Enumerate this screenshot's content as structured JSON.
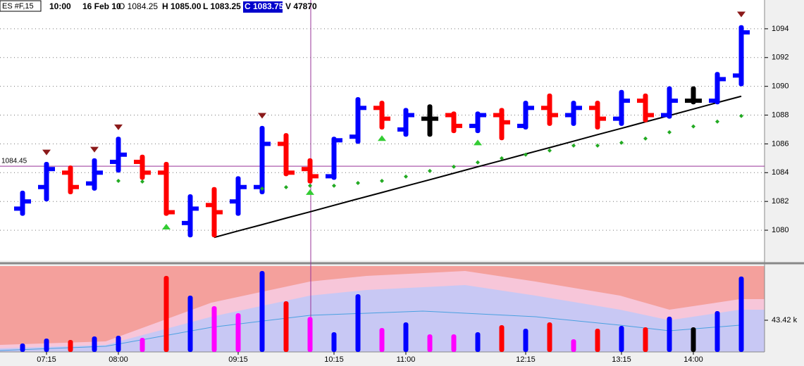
{
  "header": {
    "symbol": "ES #F,15",
    "time": "10:00",
    "date": "16 Feb 10",
    "open": "O 1084.25",
    "high": "H 1085.00",
    "low": "L 1083.25",
    "close": "C 1083.75",
    "volume": "V 47870"
  },
  "chart_data": [
    {
      "type": "ohlc",
      "open": [
        1081.5,
        1083.0,
        1084.0,
        1083.25,
        1084.75,
        1084.75,
        1084.0,
        1080.5,
        1081.75,
        1082.0,
        1083.0,
        1086.0,
        1084.25,
        1083.75,
        1086.5,
        1088.5,
        1087.0,
        1087.75,
        1088.0,
        1087.25,
        1088.0,
        1087.25,
        1088.5,
        1088.0,
        1088.5,
        1087.75,
        1089.0,
        1088.0,
        1089.0,
        1089.0,
        1090.75
      ],
      "high": [
        1082.75,
        1084.75,
        1084.5,
        1085.0,
        1086.5,
        1085.25,
        1084.75,
        1082.5,
        1083.0,
        1083.75,
        1087.25,
        1086.75,
        1085.0,
        1086.5,
        1089.25,
        1089.0,
        1088.5,
        1088.75,
        1088.25,
        1088.25,
        1088.5,
        1089.0,
        1089.5,
        1089.0,
        1089.0,
        1089.75,
        1089.5,
        1090.0,
        1090.0,
        1091.0,
        1094.25
      ],
      "low": [
        1081.0,
        1082.0,
        1082.5,
        1082.75,
        1084.0,
        1083.5,
        1081.0,
        1079.5,
        1079.5,
        1081.0,
        1082.5,
        1083.75,
        1083.25,
        1083.5,
        1086.0,
        1087.0,
        1086.5,
        1086.5,
        1086.75,
        1086.75,
        1086.25,
        1087.0,
        1087.25,
        1087.25,
        1087.0,
        1087.25,
        1087.5,
        1087.75,
        1088.75,
        1088.75,
        1090.0
      ],
      "close": [
        1082.0,
        1084.25,
        1083.0,
        1084.0,
        1085.25,
        1084.0,
        1081.25,
        1081.5,
        1081.25,
        1083.0,
        1086.0,
        1084.0,
        1083.75,
        1086.25,
        1088.5,
        1087.75,
        1088.0,
        1087.75,
        1087.25,
        1088.0,
        1087.5,
        1088.5,
        1088.0,
        1088.5,
        1087.75,
        1089.0,
        1088.0,
        1089.0,
        1089.0,
        1090.5,
        1093.75
      ],
      "up_color": "#0000ff",
      "down_color": "#ff0000",
      "flat_color": "#000000",
      "signal_down": [
        null,
        1085.4,
        null,
        1085.6,
        1087.15,
        null,
        null,
        null,
        null,
        null,
        1087.95,
        null,
        null,
        null,
        null,
        null,
        null,
        null,
        null,
        null,
        null,
        null,
        null,
        null,
        null,
        null,
        null,
        null,
        null,
        null,
        1095.0
      ],
      "signal_down_color": "#8b1a1a",
      "signal_up": [
        null,
        null,
        null,
        null,
        null,
        null,
        1080.25,
        null,
        null,
        null,
        null,
        null,
        1082.65,
        null,
        null,
        1086.4,
        null,
        null,
        null,
        1086.1,
        null,
        null,
        null,
        null,
        null,
        null,
        null,
        null,
        null,
        null,
        null
      ],
      "signal_up_color": "#33cc33",
      "stop_dots": [
        null,
        null,
        null,
        null,
        1083.43,
        1083.38,
        null,
        null,
        null,
        null,
        1082.89,
        1082.99,
        1083.09,
        1083.09,
        1083.28,
        1083.43,
        1083.73,
        1084.12,
        1084.41,
        1084.71,
        1085.0,
        1085.25,
        1085.54,
        1085.88,
        1085.88,
        1086.08,
        1086.37,
        1086.81,
        1087.21,
        1087.55,
        1087.94
      ],
      "stop_dots_color": "#22aa22",
      "trendline": [
        null,
        null,
        null,
        null,
        null,
        null,
        null,
        null,
        1079.5,
        1079.95,
        1080.39,
        1080.84,
        1081.28,
        1081.73,
        1082.18,
        1082.62,
        1083.07,
        1083.51,
        1083.96,
        1084.41,
        1084.85,
        1085.3,
        1085.74,
        1086.19,
        1086.64,
        1087.08,
        1087.53,
        1087.97,
        1088.42,
        1088.87,
        1089.31
      ],
      "trendline_color": "#000000",
      "ylim": [
        1077.9,
        1096.0
      ],
      "yticks": [
        1080,
        1082,
        1084,
        1086,
        1088,
        1090,
        1092,
        1094
      ],
      "grid": true,
      "crosshair_price": 1084.45
    },
    {
      "type": "bar",
      "categories": [
        null,
        "07:15",
        null,
        null,
        "08:00",
        null,
        null,
        null,
        null,
        "09:15",
        null,
        null,
        null,
        "10:15",
        null,
        null,
        "11:00",
        null,
        null,
        null,
        null,
        "12:15",
        null,
        null,
        null,
        "13:15",
        null,
        null,
        "14:00",
        null,
        null
      ],
      "values": [
        11.6,
        18.3,
        16.4,
        21.2,
        22.2,
        19.3,
        104.2,
        77.2,
        62.7,
        53.1,
        111.0,
        69.5,
        47.87,
        27.0,
        79.1,
        32.8,
        40.5,
        24.1,
        24.1,
        27.0,
        36.7,
        31.8,
        40.5,
        17.4,
        31.8,
        35.7,
        33.8,
        48.3,
        33.8,
        56.0,
        103.3
      ],
      "colors": [
        "#0000ff",
        "#0000ff",
        "#ff0000",
        "#0000ff",
        "#0000ff",
        "#ff00ff",
        "#ff0000",
        "#0000ff",
        "#ff00ff",
        "#ff00ff",
        "#0000ff",
        "#ff0000",
        "#ff00ff",
        "#0000ff",
        "#0000ff",
        "#ff00ff",
        "#0000ff",
        "#ff00ff",
        "#ff00ff",
        "#0000ff",
        "#ff0000",
        "#0000ff",
        "#ff0000",
        "#ff00ff",
        "#ff0000",
        "#0000ff",
        "#ff0000",
        "#0000ff",
        "#000000",
        "#0000ff",
        "#0000ff"
      ],
      "ylim": [
        0,
        117.7
      ],
      "yticks": [
        {
          "value": 43.42,
          "label": "43.42 k"
        }
      ]
    }
  ]
}
